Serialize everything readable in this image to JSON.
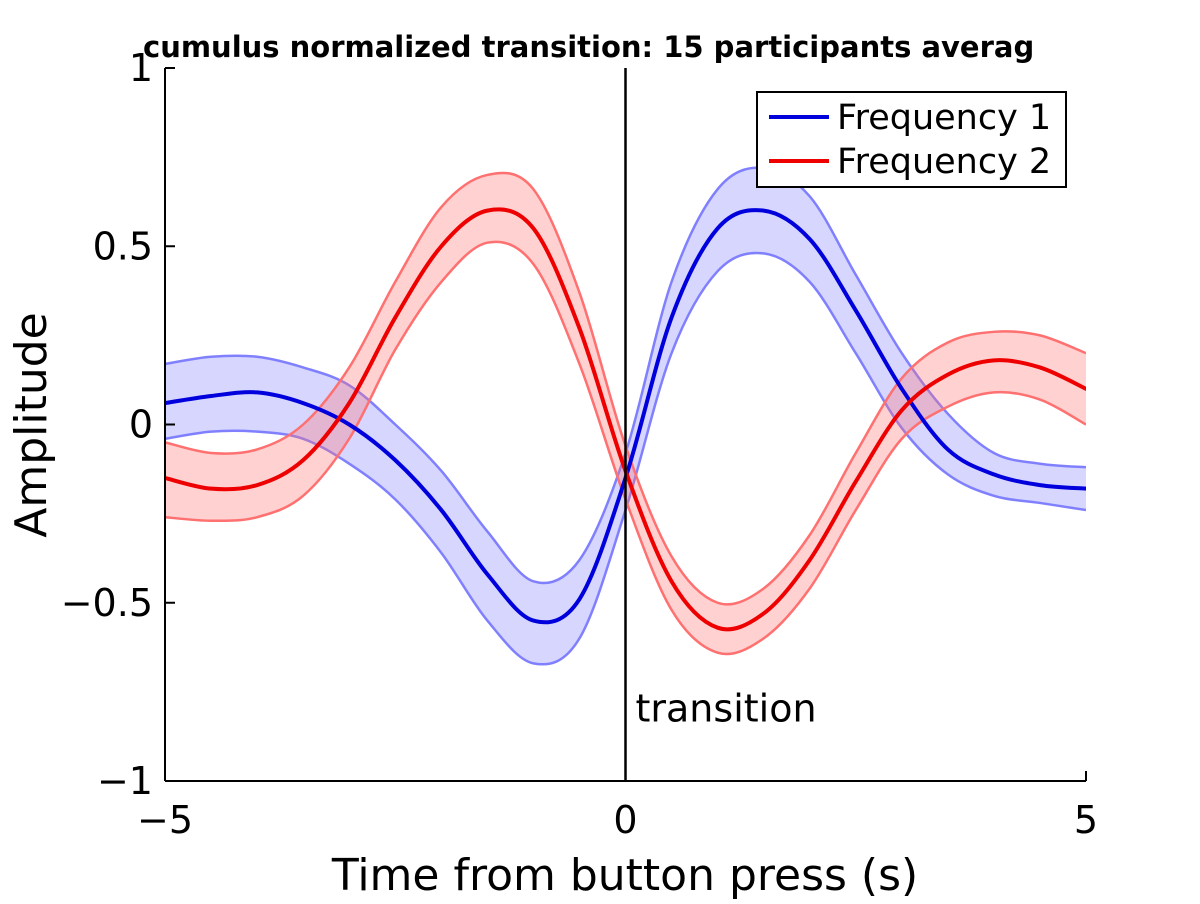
{
  "chart_data": {
    "type": "line",
    "title": "cumulus normalized transition: 15 participants averag",
    "xlabel": "Time from button press (s)",
    "ylabel": "Amplitude",
    "xlim": [
      -5,
      5
    ],
    "ylim": [
      -1,
      1
    ],
    "xticks": [
      -5,
      0,
      5
    ],
    "xtick_labels": [
      "−5",
      "0",
      "5"
    ],
    "yticks": [
      -1,
      -0.5,
      0,
      0.5,
      1
    ],
    "ytick_labels": [
      "−1",
      "−0.5",
      "0",
      "0.5",
      "1"
    ],
    "grid": false,
    "legend_position": "top-right",
    "vline": {
      "x": 0,
      "label": "transition"
    },
    "x": [
      -5,
      -4.5,
      -4,
      -3.5,
      -3,
      -2.5,
      -2,
      -1.5,
      -1,
      -0.5,
      0,
      0.5,
      1,
      1.5,
      2,
      2.5,
      3,
      3.5,
      4,
      4.5,
      5
    ],
    "series": [
      {
        "name": "Frequency 1",
        "color": "#0000dd",
        "band_color": "#8080ff",
        "values": [
          0.06,
          0.08,
          0.09,
          0.06,
          0.0,
          -0.1,
          -0.24,
          -0.42,
          -0.55,
          -0.49,
          -0.15,
          0.3,
          0.55,
          0.6,
          0.52,
          0.32,
          0.1,
          -0.07,
          -0.14,
          -0.17,
          -0.18
        ],
        "upper": [
          0.17,
          0.19,
          0.19,
          0.16,
          0.11,
          0.0,
          -0.13,
          -0.3,
          -0.44,
          -0.38,
          -0.08,
          0.4,
          0.66,
          0.72,
          0.64,
          0.42,
          0.2,
          0.03,
          -0.08,
          -0.11,
          -0.12
        ],
        "lower": [
          -0.04,
          -0.02,
          -0.02,
          -0.04,
          -0.11,
          -0.21,
          -0.36,
          -0.55,
          -0.67,
          -0.6,
          -0.24,
          0.2,
          0.43,
          0.48,
          0.4,
          0.2,
          -0.01,
          -0.14,
          -0.2,
          -0.22,
          -0.24
        ]
      },
      {
        "name": "Frequency 2",
        "color": "#ee0000",
        "band_color": "#ff7070",
        "values": [
          -0.15,
          -0.18,
          -0.17,
          -0.1,
          0.06,
          0.3,
          0.5,
          0.6,
          0.55,
          0.27,
          -0.13,
          -0.44,
          -0.57,
          -0.53,
          -0.38,
          -0.16,
          0.04,
          0.14,
          0.18,
          0.16,
          0.1
        ],
        "upper": [
          -0.05,
          -0.08,
          -0.07,
          0.0,
          0.16,
          0.4,
          0.61,
          0.7,
          0.66,
          0.37,
          -0.06,
          -0.37,
          -0.5,
          -0.46,
          -0.31,
          -0.08,
          0.13,
          0.23,
          0.26,
          0.25,
          0.2
        ],
        "lower": [
          -0.26,
          -0.27,
          -0.26,
          -0.2,
          -0.04,
          0.21,
          0.4,
          0.51,
          0.45,
          0.17,
          -0.21,
          -0.52,
          -0.64,
          -0.6,
          -0.46,
          -0.24,
          -0.04,
          0.05,
          0.09,
          0.07,
          0.0
        ]
      }
    ]
  }
}
